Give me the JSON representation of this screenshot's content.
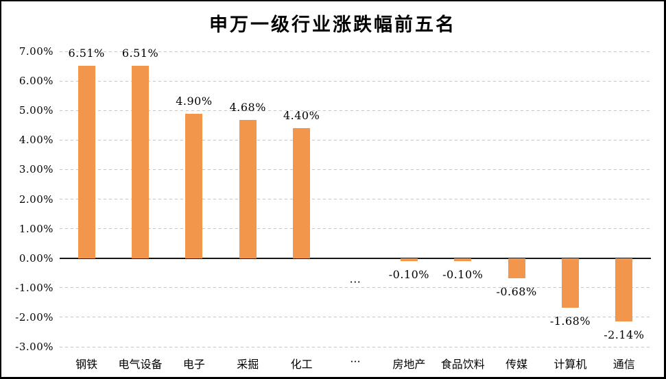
{
  "title": "申万一级行业涨跌幅前五名",
  "colors": {
    "bar": "#F2964B",
    "gridline": "#C4C4C4",
    "axis_line": "#151515",
    "text": "#000000",
    "frame_border": "#000000",
    "background": "#FFFFFF"
  },
  "chart_data": {
    "type": "bar",
    "title": "申万一级行业涨跌幅前五名",
    "categories": [
      "钢铁",
      "电气设备",
      "电子",
      "采掘",
      "化工",
      "···",
      "房地产",
      "食品饮料",
      "传媒",
      "计算机",
      "通信"
    ],
    "values": [
      6.51,
      6.51,
      4.9,
      4.68,
      4.4,
      null,
      -0.1,
      -0.1,
      -0.68,
      -1.68,
      -2.14
    ],
    "data_labels": [
      "6.51%",
      "6.51%",
      "4.90%",
      "4.68%",
      "4.40%",
      "···",
      "-0.10%",
      "-0.10%",
      "-0.68%",
      "-1.68%",
      "-2.14%"
    ],
    "y_ticks": [
      "7.00%",
      "6.00%",
      "5.00%",
      "4.00%",
      "3.00%",
      "2.00%",
      "1.00%",
      "0.00%",
      "-1.00%",
      "-2.00%",
      "-3.00%"
    ],
    "y_tick_values": [
      7,
      6,
      5,
      4,
      3,
      2,
      1,
      0,
      -1,
      -2,
      -3
    ],
    "ylim": [
      -3,
      7
    ],
    "xlabel": "",
    "ylabel": "",
    "grid": "horizontal-dashed",
    "legend": "none",
    "bar_color": "#F2964B"
  }
}
